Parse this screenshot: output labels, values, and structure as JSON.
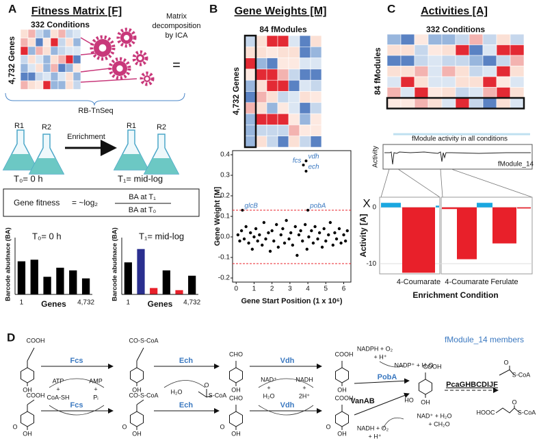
{
  "figure_labels": [
    "A",
    "B",
    "C",
    "D"
  ],
  "panel_a": {
    "title": "Fitness Matrix [F]",
    "columns": "332 Conditions",
    "rows": "4,732 Genes",
    "method": "RB-TnSeq",
    "replicates": [
      "R1",
      "R2",
      "R1",
      "R2"
    ],
    "enrichment": "Enrichment",
    "t0": "T₀= 0 h",
    "t1": "T₁= mid-log",
    "formula": {
      "lhs": "Gene fitness",
      "operator": "= ~log₂",
      "numerator": "BA at T₁",
      "denominator": "BA at T₀"
    }
  },
  "decomposition": {
    "text": [
      "Matrix",
      "decomposition",
      "by ICA"
    ],
    "equals": "=",
    "times": "X"
  },
  "panel_b": {
    "title": "Gene Weights [M]",
    "columns": "84 fModules",
    "rows": "4,732 Genes"
  },
  "panel_c": {
    "title": "Activities [A]",
    "columns": "332 Conditions",
    "rows": "84 fModules",
    "inset_title": "fModule activity in all conditions",
    "inset_ylabel": "Activity",
    "inset_label": "fModule_14"
  },
  "panel_d": {
    "members_note": "fModule_14 members",
    "enzymes": [
      "Fcs",
      "Ech",
      "Vdh",
      "Fcs",
      "Ech",
      "Vdh",
      "PobA",
      "VanAB",
      "PcaGHBCDIJF"
    ],
    "cofactors": [
      "ATP",
      "+",
      "CoA-SH",
      "AMP",
      "+",
      "Pᵢ",
      "H₂O",
      "NAD⁺",
      "+",
      "H₂O",
      "NADH",
      "+",
      "2H⁺",
      "NADPH + O₂",
      "+ H⁺",
      "NADP⁺ + H₂O",
      "NAD⁺ + H₂O",
      "+ CH₂O",
      "NADH + O₂",
      "+ H⁺"
    ],
    "structure_labels": [
      "COOH",
      "OH",
      "CO-S-CoA",
      "OH",
      "CHO",
      "OH",
      "COOH",
      "OH",
      "O",
      "S-CoA",
      "COOH",
      "HO",
      "OH",
      "O",
      "S-CoA",
      "COOH",
      "O",
      "OH",
      "CO-S-CoA",
      "O",
      "OH",
      "CHO",
      "O",
      "OH",
      "COOH",
      "O",
      "OH",
      "HOOC",
      "O",
      "S-CoA"
    ]
  },
  "chart_data": [
    {
      "type": "bar",
      "title": "T₀= 0 h",
      "ylabel": "Barcode abudnace (BA)",
      "xlabel": "Genes",
      "categories": [
        "1",
        null,
        null,
        null,
        null,
        "4,732"
      ],
      "values": [
        0.62,
        0.65,
        0.33,
        0.5,
        0.45,
        0.3
      ],
      "colors": [
        "#000000",
        "#000000",
        "#000000",
        "#000000",
        "#000000",
        "#000000"
      ],
      "ylim": [
        0,
        1
      ]
    },
    {
      "type": "bar",
      "title": "T₁= mid-log",
      "ylabel": "Barcode abudnace (BA)",
      "xlabel": "Genes",
      "categories": [
        "1",
        null,
        null,
        null,
        null,
        "4,732"
      ],
      "values": [
        0.6,
        0.85,
        0.12,
        0.45,
        0.08,
        0.35
      ],
      "colors": [
        "#000000",
        "#2a2f8f",
        "#e8202a",
        "#000000",
        "#e8202a",
        "#000000"
      ],
      "ylim": [
        0,
        1
      ]
    },
    {
      "type": "scatter",
      "xlabel": "Gene Start Position (1 x 10⁶)",
      "ylabel": "Gene Weight [M]",
      "color": "#000000",
      "x": [
        0.1,
        0.2,
        0.3,
        0.45,
        0.55,
        0.7,
        0.8,
        0.9,
        1.0,
        1.1,
        1.2,
        1.3,
        1.45,
        1.55,
        1.65,
        1.8,
        1.9,
        2.0,
        2.1,
        2.25,
        2.35,
        2.5,
        2.6,
        2.7,
        2.8,
        2.95,
        3.05,
        3.15,
        3.3,
        3.4,
        3.5,
        3.6,
        3.7,
        3.85,
        3.95,
        4.05,
        4.2,
        4.3,
        4.4,
        4.55,
        4.65,
        4.8,
        4.9,
        5.0,
        5.15,
        5.25,
        5.4,
        5.5,
        5.6,
        5.75,
        5.85,
        6.0,
        6.1,
        6.2
      ],
      "values": [
        0.01,
        -0.02,
        0.03,
        -0.01,
        0.05,
        -0.03,
        0.02,
        -0.06,
        0.0,
        0.04,
        -0.02,
        0.01,
        -0.04,
        0.07,
        -0.01,
        0.02,
        -0.07,
        0.03,
        -0.02,
        0.06,
        -0.05,
        0.01,
        0.04,
        -0.03,
        0.08,
        -0.01,
        0.02,
        -0.04,
        0.05,
        -0.09,
        0.01,
        0.03,
        -0.02,
        0.06,
        -0.06,
        0.0,
        0.03,
        -0.03,
        0.05,
        -0.01,
        0.02,
        -0.05,
        0.04,
        -0.02,
        0.01,
        0.07,
        -0.04,
        0.02,
        -0.01,
        0.04,
        -0.03,
        0.01,
        -0.02,
        0.03
      ],
      "annotations": [
        {
          "text": "glcB",
          "x": 0.35,
          "y": 0.13
        },
        {
          "text": "fcs",
          "x": 3.75,
          "y": 0.35
        },
        {
          "text": "vdh",
          "x": 3.9,
          "y": 0.37
        },
        {
          "text": "ech",
          "x": 3.9,
          "y": 0.32
        },
        {
          "text": "pobA",
          "x": 4.0,
          "y": 0.13
        }
      ],
      "annotation_color": "#3a78c0",
      "thresholds": [
        0.13,
        -0.13
      ],
      "threshold_color": "#e8202a",
      "xlim": [
        -0.2,
        6.4
      ],
      "ylim": [
        -0.22,
        0.42
      ],
      "xticks": [
        0,
        1,
        2,
        3,
        4,
        5,
        6
      ],
      "yticks": [
        -0.2,
        -0.1,
        {
          "value": 0,
          "label": "0.0"
        },
        0.1,
        0.2,
        0.3,
        0.4
      ]
    },
    {
      "type": "bar",
      "ylabel": "Activity [A]",
      "xlabel": "Enrichment Condition",
      "categories": [
        null,
        "4-Coumarate",
        null,
        null,
        "4-Coumarate",
        null,
        "Ferulate",
        null
      ],
      "values": [
        0.8,
        -11.6,
        0.3,
        -0.3,
        -9.2,
        0.8,
        -6.4,
        -0.2
      ],
      "colors": [
        "#1aa7e0",
        "#e8202a",
        "#1aa7e0",
        "#e8202a",
        "#e8202a",
        "#1aa7e0",
        "#e8202a",
        "#e8202a"
      ],
      "ylim": [
        -11.8,
        1.8
      ],
      "yticks": [
        -10,
        0
      ],
      "grid": true
    }
  ]
}
